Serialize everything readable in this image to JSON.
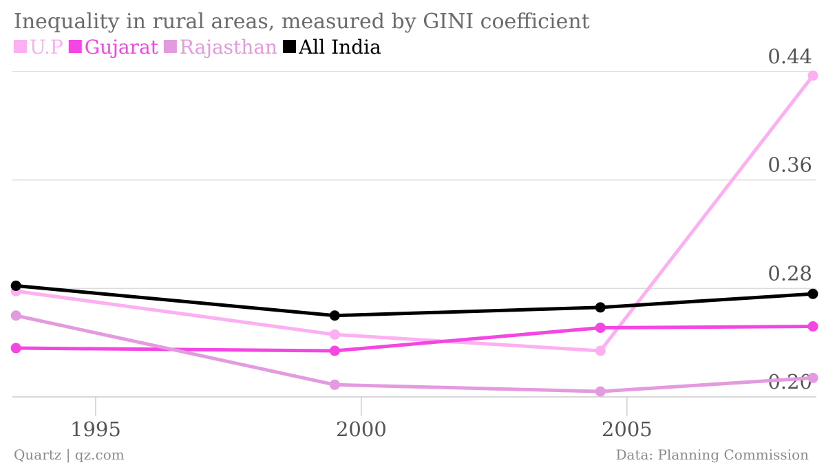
{
  "header": {
    "title": "Inequality in rural areas, measured by GINI coefficient"
  },
  "footer": {
    "source_left": "Quartz | qz.com",
    "source_right": "Data: Planning Commission"
  },
  "chart_data": {
    "type": "line",
    "title": "Inequality in rural areas, measured by GINI coefficient",
    "xlabel": "",
    "ylabel": "",
    "xlim": [
      1993.2,
      2008.5
    ],
    "ylim": [
      0.2,
      0.44
    ],
    "x_ticks": [
      1995,
      2000,
      2005
    ],
    "x_tick_labels": [
      "1995",
      "2000",
      "2005"
    ],
    "y_ticks": [
      0.2,
      0.28,
      0.36,
      0.44
    ],
    "y_tick_labels": [
      "0.20",
      "0.28",
      "0.36",
      "0.44"
    ],
    "x": [
      1993.5,
      1999.5,
      2004.5,
      2009.5
    ],
    "grid": "horizontal",
    "legend_position": "top-left",
    "series": [
      {
        "name": "U.P",
        "color": "#fcb0f1",
        "values": [
          0.278,
          0.246,
          0.234,
          0.437
        ]
      },
      {
        "name": "Gujarat",
        "color": "#f446e2",
        "values": [
          0.236,
          0.234,
          0.251,
          0.252
        ]
      },
      {
        "name": "Rajasthan",
        "color": "#e39ade",
        "values": [
          0.26,
          0.209,
          0.204,
          0.214
        ]
      },
      {
        "name": "All India",
        "color": "#000000",
        "values": [
          0.282,
          0.26,
          0.266,
          0.276
        ]
      }
    ]
  }
}
